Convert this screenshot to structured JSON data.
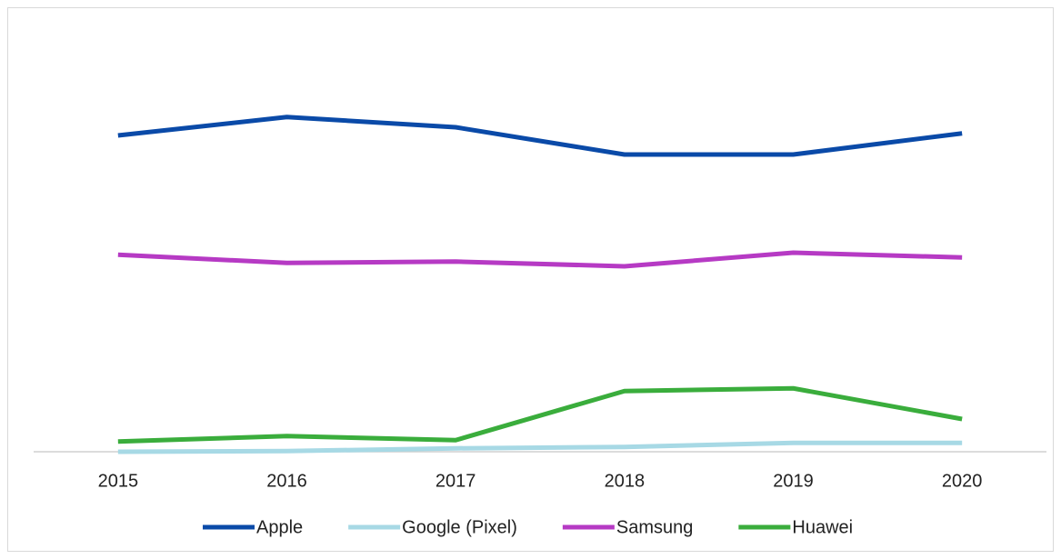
{
  "chart_data": {
    "type": "line",
    "categories": [
      "2015",
      "2016",
      "2017",
      "2018",
      "2019",
      "2020"
    ],
    "series": [
      {
        "name": "Apple",
        "color": "#0a4aa8",
        "values": [
          46.4,
          49.1,
          47.6,
          43.6,
          43.6,
          46.7
        ]
      },
      {
        "name": "Google (Pixel)",
        "color": "#a7d9e5",
        "values": [
          0,
          0.1,
          0.5,
          0.7,
          1.3,
          1.3
        ]
      },
      {
        "name": "Samsung",
        "color": "#b63ac4",
        "values": [
          28.9,
          27.7,
          27.9,
          27.2,
          29.2,
          28.5
        ]
      },
      {
        "name": "Huawei",
        "color": "#3aad3c",
        "values": [
          1.5,
          2.3,
          1.7,
          8.9,
          9.3,
          4.8
        ]
      }
    ],
    "ylim": [
      0,
      60
    ],
    "legend": "bottom"
  }
}
